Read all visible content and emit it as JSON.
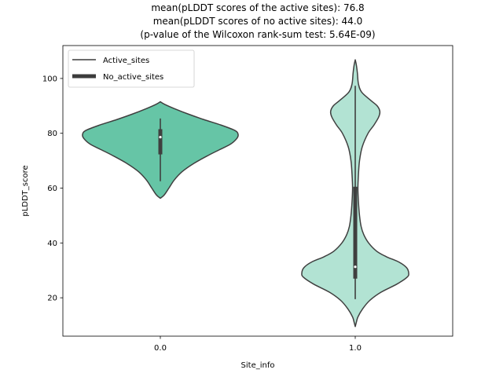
{
  "chart_data": {
    "type": "violin",
    "title_lines": [
      "mean(pLDDT scores of the active sites): 76.8",
      "mean(pLDDT scores of no active sites): 44.0",
      "(p-value of the Wilcoxon rank-sum test: 5.64E-09)"
    ],
    "xlabel": "Site_info",
    "ylabel": "pLDDT_score",
    "ylim": [
      6,
      112
    ],
    "yticks": [
      20,
      40,
      60,
      80,
      100
    ],
    "categories": [
      "0.0",
      "1.0"
    ],
    "legend": {
      "location": "upper-left",
      "entries": [
        {
          "label": "Active_sites",
          "style": "thin-line"
        },
        {
          "label": "No_active_sites",
          "style": "thick-line"
        }
      ]
    },
    "series": [
      {
        "name": "Active_sites",
        "category": "0.0",
        "color": "#66c5a6",
        "min": 62.5,
        "q1": 72.3,
        "median": 78.6,
        "q3": 81.5,
        "max": 85.4,
        "density_profile": [
          [
            56.3,
            0.0
          ],
          [
            57.5,
            0.05
          ],
          [
            60.0,
            0.11
          ],
          [
            63.0,
            0.18
          ],
          [
            66.0,
            0.28
          ],
          [
            69.0,
            0.43
          ],
          [
            72.0,
            0.62
          ],
          [
            74.0,
            0.76
          ],
          [
            76.0,
            0.9
          ],
          [
            78.0,
            0.98
          ],
          [
            79.5,
            1.0
          ],
          [
            81.0,
            0.96
          ],
          [
            83.0,
            0.78
          ],
          [
            85.0,
            0.56
          ],
          [
            87.0,
            0.36
          ],
          [
            89.0,
            0.18
          ],
          [
            90.5,
            0.06
          ],
          [
            91.5,
            0.0
          ]
        ]
      },
      {
        "name": "No_active_sites",
        "category": "1.0",
        "color": "#b2e3d3",
        "min": 19.5,
        "q1": 27.0,
        "median": 31.3,
        "q3": 60.5,
        "max": 97.3,
        "density_profile": [
          [
            9.5,
            0.0
          ],
          [
            11.0,
            0.02
          ],
          [
            13.0,
            0.05
          ],
          [
            16.0,
            0.14
          ],
          [
            19.0,
            0.27
          ],
          [
            22.0,
            0.48
          ],
          [
            25.0,
            0.78
          ],
          [
            27.5,
            0.97
          ],
          [
            29.0,
            1.0
          ],
          [
            31.0,
            0.96
          ],
          [
            33.0,
            0.82
          ],
          [
            35.0,
            0.58
          ],
          [
            37.0,
            0.4
          ],
          [
            40.0,
            0.25
          ],
          [
            43.0,
            0.16
          ],
          [
            46.0,
            0.11
          ],
          [
            50.0,
            0.08
          ],
          [
            55.0,
            0.06
          ],
          [
            60.0,
            0.05
          ],
          [
            65.0,
            0.06
          ],
          [
            70.0,
            0.08
          ],
          [
            75.0,
            0.13
          ],
          [
            80.0,
            0.24
          ],
          [
            83.0,
            0.35
          ],
          [
            86.0,
            0.44
          ],
          [
            88.0,
            0.46
          ],
          [
            90.0,
            0.41
          ],
          [
            92.0,
            0.29
          ],
          [
            95.0,
            0.12
          ],
          [
            98.0,
            0.06
          ],
          [
            102.0,
            0.04
          ],
          [
            105.0,
            0.02
          ],
          [
            106.8,
            0.0
          ]
        ]
      }
    ]
  }
}
